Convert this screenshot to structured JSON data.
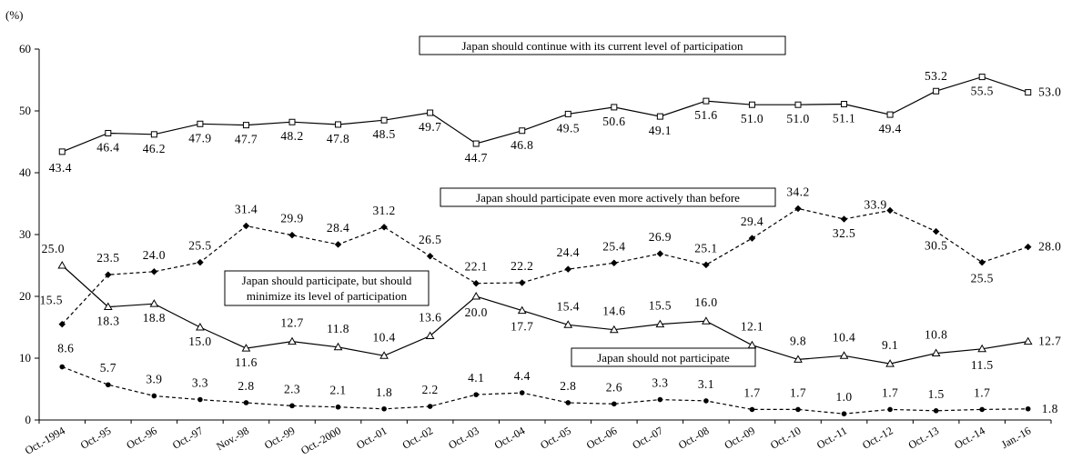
{
  "chart_data": {
    "type": "line",
    "ylabel": "(%)",
    "ylim": [
      0,
      60
    ],
    "yticks": [
      0,
      10,
      20,
      30,
      40,
      50,
      60
    ],
    "grid": false,
    "categories": [
      "Oct.-1994",
      "Oct.-95",
      "Oct.-96",
      "Oct.-97",
      "Nov.-98",
      "Oct.-99",
      "Oct.-2000",
      "Oct.-01",
      "Oct.-02",
      "Oct.-03",
      "Oct.-04",
      "Oct.-05",
      "Oct.-06",
      "Oct.-07",
      "Oct.-08",
      "Oct.-09",
      "Oct.-10",
      "Oct.-11",
      "Oct.-12",
      "Oct.-13",
      "Oct.-14",
      "Jan.-16"
    ],
    "series": [
      {
        "name": "Japan should continue with its current level of participation",
        "marker": "square",
        "line": "solid",
        "values": [
          43.4,
          46.4,
          46.2,
          47.9,
          47.7,
          48.2,
          47.8,
          48.5,
          49.7,
          44.7,
          46.8,
          49.5,
          50.6,
          49.1,
          51.6,
          51.0,
          51.0,
          51.1,
          49.4,
          53.2,
          55.5,
          53.0
        ]
      },
      {
        "name": "Japan should participate even more actively than before",
        "marker": "diamond",
        "line": "dashed",
        "values": [
          15.5,
          23.5,
          24.0,
          25.5,
          31.4,
          29.9,
          28.4,
          31.2,
          26.5,
          22.1,
          22.2,
          24.4,
          25.4,
          26.9,
          25.1,
          29.4,
          34.2,
          32.5,
          33.9,
          30.5,
          25.5,
          28.0
        ]
      },
      {
        "name": "Japan should participate, but should minimize its level of participation",
        "marker": "triangle",
        "line": "solid",
        "values": [
          25.0,
          18.3,
          18.8,
          15.0,
          11.6,
          12.7,
          11.8,
          10.4,
          13.6,
          20.0,
          17.7,
          15.4,
          14.6,
          15.5,
          16.0,
          12.1,
          9.8,
          10.4,
          9.1,
          10.8,
          11.5,
          12.7
        ]
      },
      {
        "name": "Japan should not participate",
        "marker": "circle",
        "line": "dashed",
        "values": [
          8.6,
          5.7,
          3.9,
          3.3,
          2.8,
          2.3,
          2.1,
          1.8,
          2.2,
          4.1,
          4.4,
          2.8,
          2.6,
          3.3,
          3.1,
          1.7,
          1.7,
          1.0,
          1.7,
          1.5,
          1.7,
          1.8
        ]
      }
    ],
    "annotations": [
      "Japan should continue with its current level of participation",
      "Japan should participate even more actively than before",
      "Japan should participate, but should",
      "minimize its level of participation",
      "Japan should not participate"
    ]
  }
}
